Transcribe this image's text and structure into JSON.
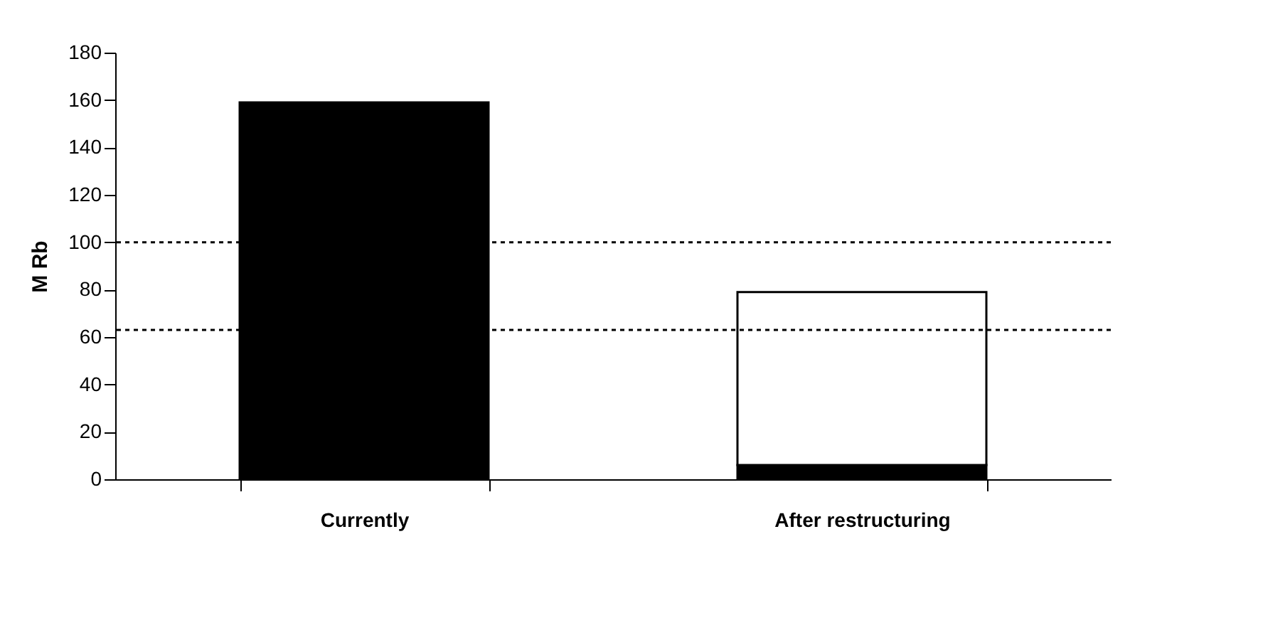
{
  "chart_data": {
    "type": "bar",
    "stacked": true,
    "ylabel": "M Rb",
    "categories": [
      "Currently",
      "After restructuring"
    ],
    "series": [
      {
        "color": "#000000",
        "values": [
          159,
          6
        ]
      },
      {
        "color": "#ffffff",
        "values": [
          null,
          73
        ]
      }
    ],
    "ylim": [
      0,
      180
    ],
    "yticks": [
      0,
      20,
      40,
      60,
      80,
      100,
      120,
      140,
      160,
      180
    ],
    "grid": false,
    "ref_lines": [
      {
        "axis": "y",
        "value": 100,
        "line_style": "dashed"
      },
      {
        "axis": "y",
        "value": 63,
        "line_style": "dashed"
      }
    ]
  }
}
